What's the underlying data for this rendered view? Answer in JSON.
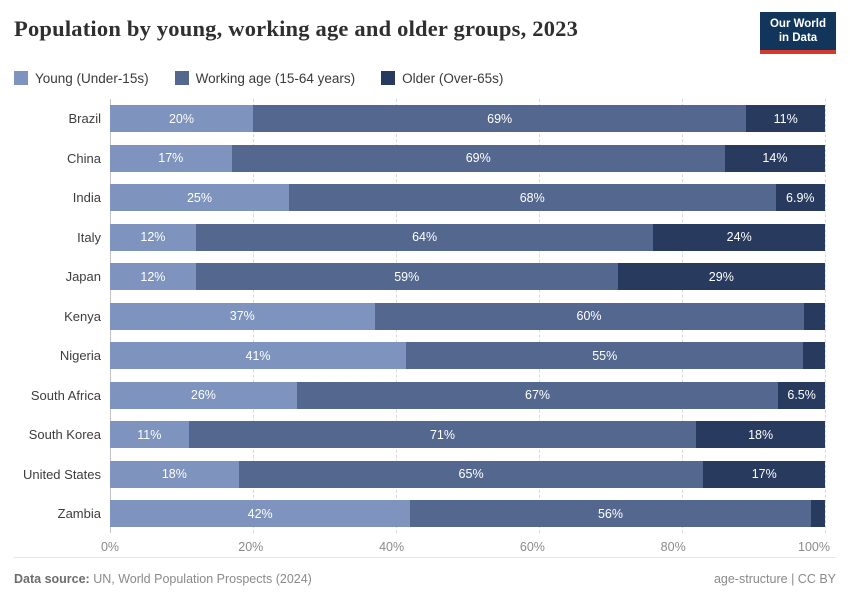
{
  "header": {
    "title": "Population by young, working age and older groups, 2023",
    "logo": {
      "line1": "Our World",
      "line2": "in Data",
      "bg_color": "#12355b",
      "stripe_color": "#d33a2c"
    }
  },
  "legend": [
    {
      "label": "Young (Under-15s)",
      "color": "#7e93bd"
    },
    {
      "label": "Working age (15-64 years)",
      "color": "#54678e"
    },
    {
      "label": "Older (Over-65s)",
      "color": "#283b5e"
    }
  ],
  "chart_data": {
    "type": "bar",
    "stacked": true,
    "orientation": "horizontal",
    "title": "Population by young, working age and older groups, 2023",
    "categories": [
      "Brazil",
      "China",
      "India",
      "Italy",
      "Japan",
      "Kenya",
      "Nigeria",
      "South Africa",
      "South Korea",
      "United States",
      "Zambia"
    ],
    "series": [
      {
        "name": "Young (Under-15s)",
        "color": "#7e93bd",
        "values": [
          20,
          17,
          25,
          12,
          12,
          37,
          41,
          26,
          11,
          18,
          42
        ],
        "labels": [
          "20%",
          "17%",
          "25%",
          "12%",
          "12%",
          "37%",
          "41%",
          "26%",
          "11%",
          "18%",
          "42%"
        ]
      },
      {
        "name": "Working age (15-64 years)",
        "color": "#54678e",
        "values": [
          69,
          69,
          68,
          64,
          59,
          60,
          55,
          67,
          71,
          65,
          56
        ],
        "labels": [
          "69%",
          "69%",
          "68%",
          "64%",
          "59%",
          "60%",
          "55%",
          "67%",
          "71%",
          "65%",
          "56%"
        ]
      },
      {
        "name": "Older (Over-65s)",
        "color": "#283b5e",
        "values": [
          11,
          14,
          6.9,
          24,
          29,
          3,
          3,
          6.5,
          18,
          17,
          2
        ],
        "labels": [
          "11%",
          "14%",
          "6.9%",
          "24%",
          "29%",
          "",
          "",
          "6.5%",
          "18%",
          "17%",
          ""
        ]
      }
    ],
    "x_ticks": [
      "0%",
      "20%",
      "40%",
      "60%",
      "80%",
      "100%"
    ],
    "xlim": [
      0,
      100
    ],
    "grid": "vertical-dashed",
    "legend_position": "top"
  },
  "footer": {
    "source_label": "Data source:",
    "source_text": "UN, World Population Prospects (2024)",
    "right_text": "age-structure | CC BY"
  }
}
